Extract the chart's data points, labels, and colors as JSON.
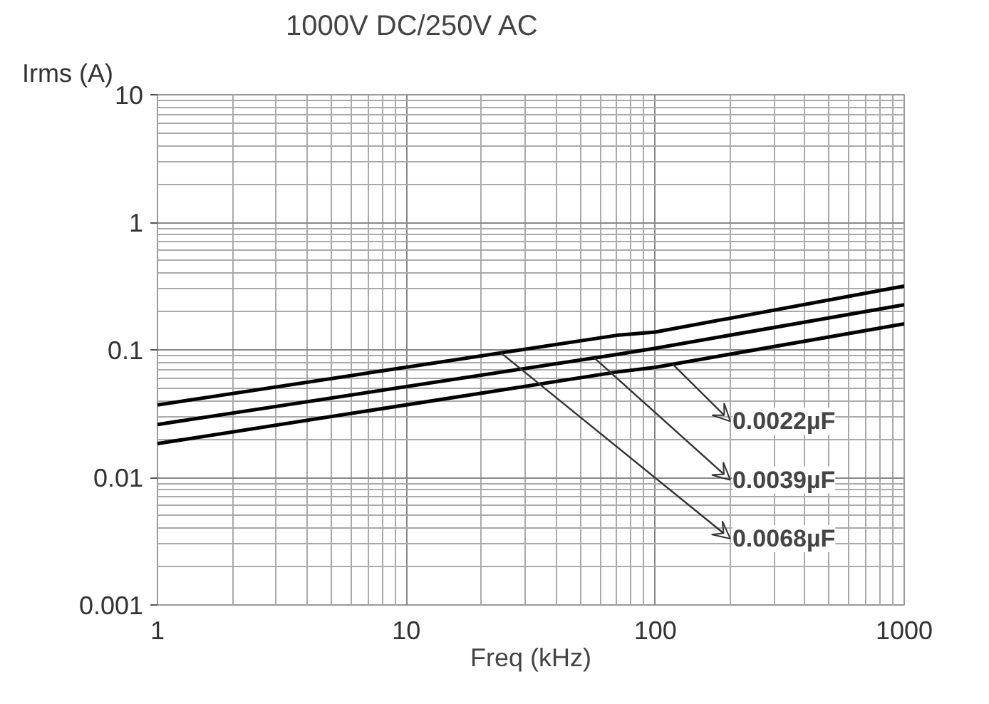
{
  "chart_data": {
    "type": "line",
    "title": "1000V DC/250V AC",
    "xlabel": "Freq (kHz)",
    "ylabel": "Irms (A)",
    "log": "xy",
    "grid": true,
    "legend": false,
    "line_style": "solid",
    "xlim": [
      1,
      1000
    ],
    "ylim": [
      0.001,
      10
    ],
    "xticks": [
      1,
      10,
      100,
      1000
    ],
    "yticks": [
      0.001,
      0.01,
      0.1,
      1,
      10
    ],
    "series": [
      {
        "name": "0.0022µF",
        "color": "#000000",
        "x": [
          1,
          70,
          100,
          1000
        ],
        "values": [
          0.0184,
          0.067,
          0.073,
          0.16
        ]
      },
      {
        "name": "0.0039µF",
        "color": "#000000",
        "x": [
          1,
          70,
          100,
          1000
        ],
        "values": [
          0.026,
          0.092,
          0.103,
          0.226
        ]
      },
      {
        "name": "0.0068µF",
        "color": "#000000",
        "x": [
          1,
          70,
          100,
          1000
        ],
        "values": [
          0.037,
          0.13,
          0.138,
          0.316
        ]
      }
    ]
  }
}
